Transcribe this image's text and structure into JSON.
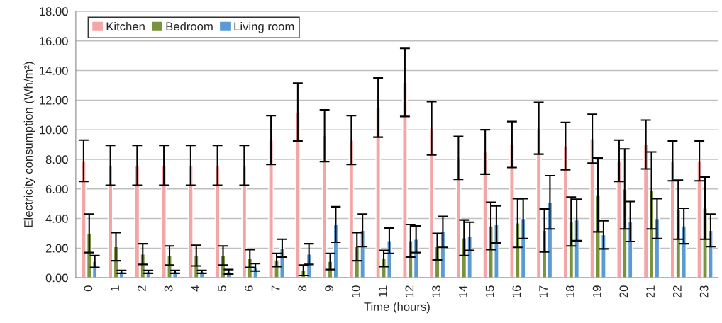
{
  "chart_data": {
    "type": "bar",
    "xlabel": "Time (hours)",
    "ylabel": "Electricity consumption (Wh/m²)",
    "categories": [
      "0",
      "1",
      "2",
      "3",
      "4",
      "5",
      "6",
      "7",
      "8",
      "9",
      "10",
      "11",
      "12",
      "13",
      "14",
      "15",
      "16",
      "17",
      "18",
      "19",
      "20",
      "21",
      "22",
      "23"
    ],
    "series": [
      {
        "name": "Kitchen",
        "color": "#f4a6a6",
        "values": [
          7.9,
          7.6,
          7.6,
          7.6,
          7.6,
          7.6,
          7.6,
          9.3,
          11.2,
          9.6,
          9.3,
          11.5,
          13.2,
          10.1,
          8.1,
          8.5,
          9.0,
          10.1,
          8.9,
          9.4,
          7.9,
          9.0,
          7.9,
          7.9
        ],
        "errors": [
          1.4,
          1.35,
          1.35,
          1.35,
          1.35,
          1.35,
          1.35,
          1.65,
          1.95,
          1.75,
          1.65,
          2.0,
          2.3,
          1.8,
          1.45,
          1.5,
          1.55,
          1.75,
          1.6,
          1.65,
          1.4,
          1.65,
          1.35,
          1.35
        ]
      },
      {
        "name": "Bedroom",
        "color": "#77933c",
        "values": [
          3.0,
          2.1,
          1.6,
          1.5,
          1.5,
          1.5,
          1.3,
          1.2,
          0.5,
          1.1,
          2.1,
          1.3,
          2.5,
          2.1,
          2.7,
          3.5,
          3.7,
          3.2,
          3.8,
          5.6,
          6.0,
          5.9,
          4.6,
          4.7
        ],
        "errors": [
          1.3,
          0.95,
          0.7,
          0.65,
          0.7,
          0.65,
          0.6,
          0.45,
          0.35,
          0.55,
          0.95,
          0.55,
          1.1,
          0.9,
          1.2,
          1.6,
          1.65,
          1.45,
          1.65,
          2.5,
          2.7,
          2.6,
          2.0,
          2.1
        ]
      },
      {
        "name": "Living room",
        "color": "#5b9bd5",
        "values": [
          1.1,
          0.4,
          0.4,
          0.4,
          0.4,
          0.4,
          0.7,
          2.0,
          1.6,
          3.6,
          3.2,
          2.5,
          2.6,
          3.1,
          2.8,
          3.6,
          4.0,
          5.1,
          3.9,
          2.9,
          3.8,
          4.0,
          3.5,
          3.2
        ],
        "errors": [
          0.4,
          0.1,
          0.1,
          0.1,
          0.1,
          0.15,
          0.25,
          0.6,
          0.7,
          1.2,
          1.1,
          0.85,
          0.9,
          1.05,
          0.95,
          1.25,
          1.35,
          1.8,
          1.4,
          0.95,
          1.35,
          1.35,
          1.2,
          1.1
        ]
      }
    ],
    "ylim": [
      0,
      18
    ],
    "yticks": [
      {
        "value": 0,
        "label": "0.00"
      },
      {
        "value": 2,
        "label": "2.00"
      },
      {
        "value": 4,
        "label": "4.00"
      },
      {
        "value": 6,
        "label": "6.00"
      },
      {
        "value": 8,
        "label": "8.00"
      },
      {
        "value": 10,
        "label": "10.00"
      },
      {
        "value": 12,
        "label": "12.00"
      },
      {
        "value": 14,
        "label": "14.00"
      },
      {
        "value": 16,
        "label": "16.00"
      },
      {
        "value": 18,
        "label": "18.00"
      }
    ],
    "grid": "y",
    "legend": "top left"
  }
}
